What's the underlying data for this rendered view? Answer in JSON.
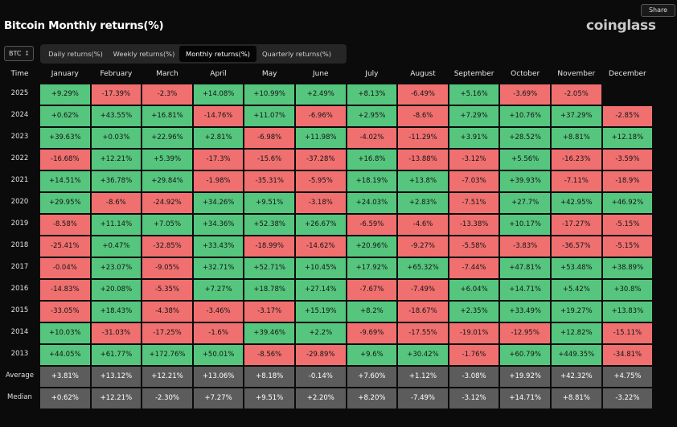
{
  "header": {
    "title": "Bitcoin Monthly returns(%)",
    "share": "Share",
    "logo": "coinglass"
  },
  "controls": {
    "symbol": "BTC",
    "tabs": [
      "Daily returns(%)",
      "Weekly returns(%)",
      "Monthly returns(%)",
      "Quarterly returns(%)"
    ],
    "active_tab": 2
  },
  "table": {
    "colors": {
      "positive": "#56c67e",
      "negative": "#f07070",
      "summary": "#5c5c5c"
    },
    "columns": [
      "Time",
      "January",
      "February",
      "March",
      "April",
      "May",
      "June",
      "July",
      "August",
      "September",
      "October",
      "November",
      "December"
    ],
    "rows": [
      {
        "label": "2025",
        "cells": [
          "+9.29%",
          "-17.39%",
          "-2.3%",
          "+14.08%",
          "+10.99%",
          "+2.49%",
          "+8.13%",
          "-6.49%",
          "+5.16%",
          "-3.69%",
          "-2.05%",
          null
        ]
      },
      {
        "label": "2024",
        "cells": [
          "+0.62%",
          "+43.55%",
          "+16.81%",
          "-14.76%",
          "+11.07%",
          "-6.96%",
          "+2.95%",
          "-8.6%",
          "+7.29%",
          "+10.76%",
          "+37.29%",
          "-2.85%"
        ]
      },
      {
        "label": "2023",
        "cells": [
          "+39.63%",
          "+0.03%",
          "+22.96%",
          "+2.81%",
          "-6.98%",
          "+11.98%",
          "-4.02%",
          "-11.29%",
          "+3.91%",
          "+28.52%",
          "+8.81%",
          "+12.18%"
        ]
      },
      {
        "label": "2022",
        "cells": [
          "-16.68%",
          "+12.21%",
          "+5.39%",
          "-17.3%",
          "-15.6%",
          "-37.28%",
          "+16.8%",
          "-13.88%",
          "-3.12%",
          "+5.56%",
          "-16.23%",
          "-3.59%"
        ]
      },
      {
        "label": "2021",
        "cells": [
          "+14.51%",
          "+36.78%",
          "+29.84%",
          "-1.98%",
          "-35.31%",
          "-5.95%",
          "+18.19%",
          "+13.8%",
          "-7.03%",
          "+39.93%",
          "-7.11%",
          "-18.9%"
        ]
      },
      {
        "label": "2020",
        "cells": [
          "+29.95%",
          "-8.6%",
          "-24.92%",
          "+34.26%",
          "+9.51%",
          "-3.18%",
          "+24.03%",
          "+2.83%",
          "-7.51%",
          "+27.7%",
          "+42.95%",
          "+46.92%"
        ]
      },
      {
        "label": "2019",
        "cells": [
          "-8.58%",
          "+11.14%",
          "+7.05%",
          "+34.36%",
          "+52.38%",
          "+26.67%",
          "-6.59%",
          "-4.6%",
          "-13.38%",
          "+10.17%",
          "-17.27%",
          "-5.15%"
        ]
      },
      {
        "label": "2018",
        "cells": [
          "-25.41%",
          "+0.47%",
          "-32.85%",
          "+33.43%",
          "-18.99%",
          "-14.62%",
          "+20.96%",
          "-9.27%",
          "-5.58%",
          "-3.83%",
          "-36.57%",
          "-5.15%"
        ]
      },
      {
        "label": "2017",
        "cells": [
          "-0.04%",
          "+23.07%",
          "-9.05%",
          "+32.71%",
          "+52.71%",
          "+10.45%",
          "+17.92%",
          "+65.32%",
          "-7.44%",
          "+47.81%",
          "+53.48%",
          "+38.89%"
        ]
      },
      {
        "label": "2016",
        "cells": [
          "-14.83%",
          "+20.08%",
          "-5.35%",
          "+7.27%",
          "+18.78%",
          "+27.14%",
          "-7.67%",
          "-7.49%",
          "+6.04%",
          "+14.71%",
          "+5.42%",
          "+30.8%"
        ]
      },
      {
        "label": "2015",
        "cells": [
          "-33.05%",
          "+18.43%",
          "-4.38%",
          "-3.46%",
          "-3.17%",
          "+15.19%",
          "+8.2%",
          "-18.67%",
          "+2.35%",
          "+33.49%",
          "+19.27%",
          "+13.83%"
        ]
      },
      {
        "label": "2014",
        "cells": [
          "+10.03%",
          "-31.03%",
          "-17.25%",
          "-1.6%",
          "+39.46%",
          "+2.2%",
          "-9.69%",
          "-17.55%",
          "-19.01%",
          "-12.95%",
          "+12.82%",
          "-15.11%"
        ]
      },
      {
        "label": "2013",
        "cells": [
          "+44.05%",
          "+61.77%",
          "+172.76%",
          "+50.01%",
          "-8.56%",
          "-29.89%",
          "+9.6%",
          "+30.42%",
          "-1.76%",
          "+60.79%",
          "+449.35%",
          "-34.81%"
        ]
      }
    ],
    "summary_rows": [
      {
        "label": "Average",
        "cells": [
          "+3.81%",
          "+13.12%",
          "+12.21%",
          "+13.06%",
          "+8.18%",
          "-0.14%",
          "+7.60%",
          "+1.12%",
          "-3.08%",
          "+19.92%",
          "+42.32%",
          "+4.75%"
        ]
      },
      {
        "label": "Median",
        "cells": [
          "+0.62%",
          "+12.21%",
          "-2.30%",
          "+7.27%",
          "+9.51%",
          "+2.20%",
          "+8.20%",
          "-7.49%",
          "-3.12%",
          "+14.71%",
          "+8.81%",
          "-3.22%"
        ]
      }
    ]
  }
}
